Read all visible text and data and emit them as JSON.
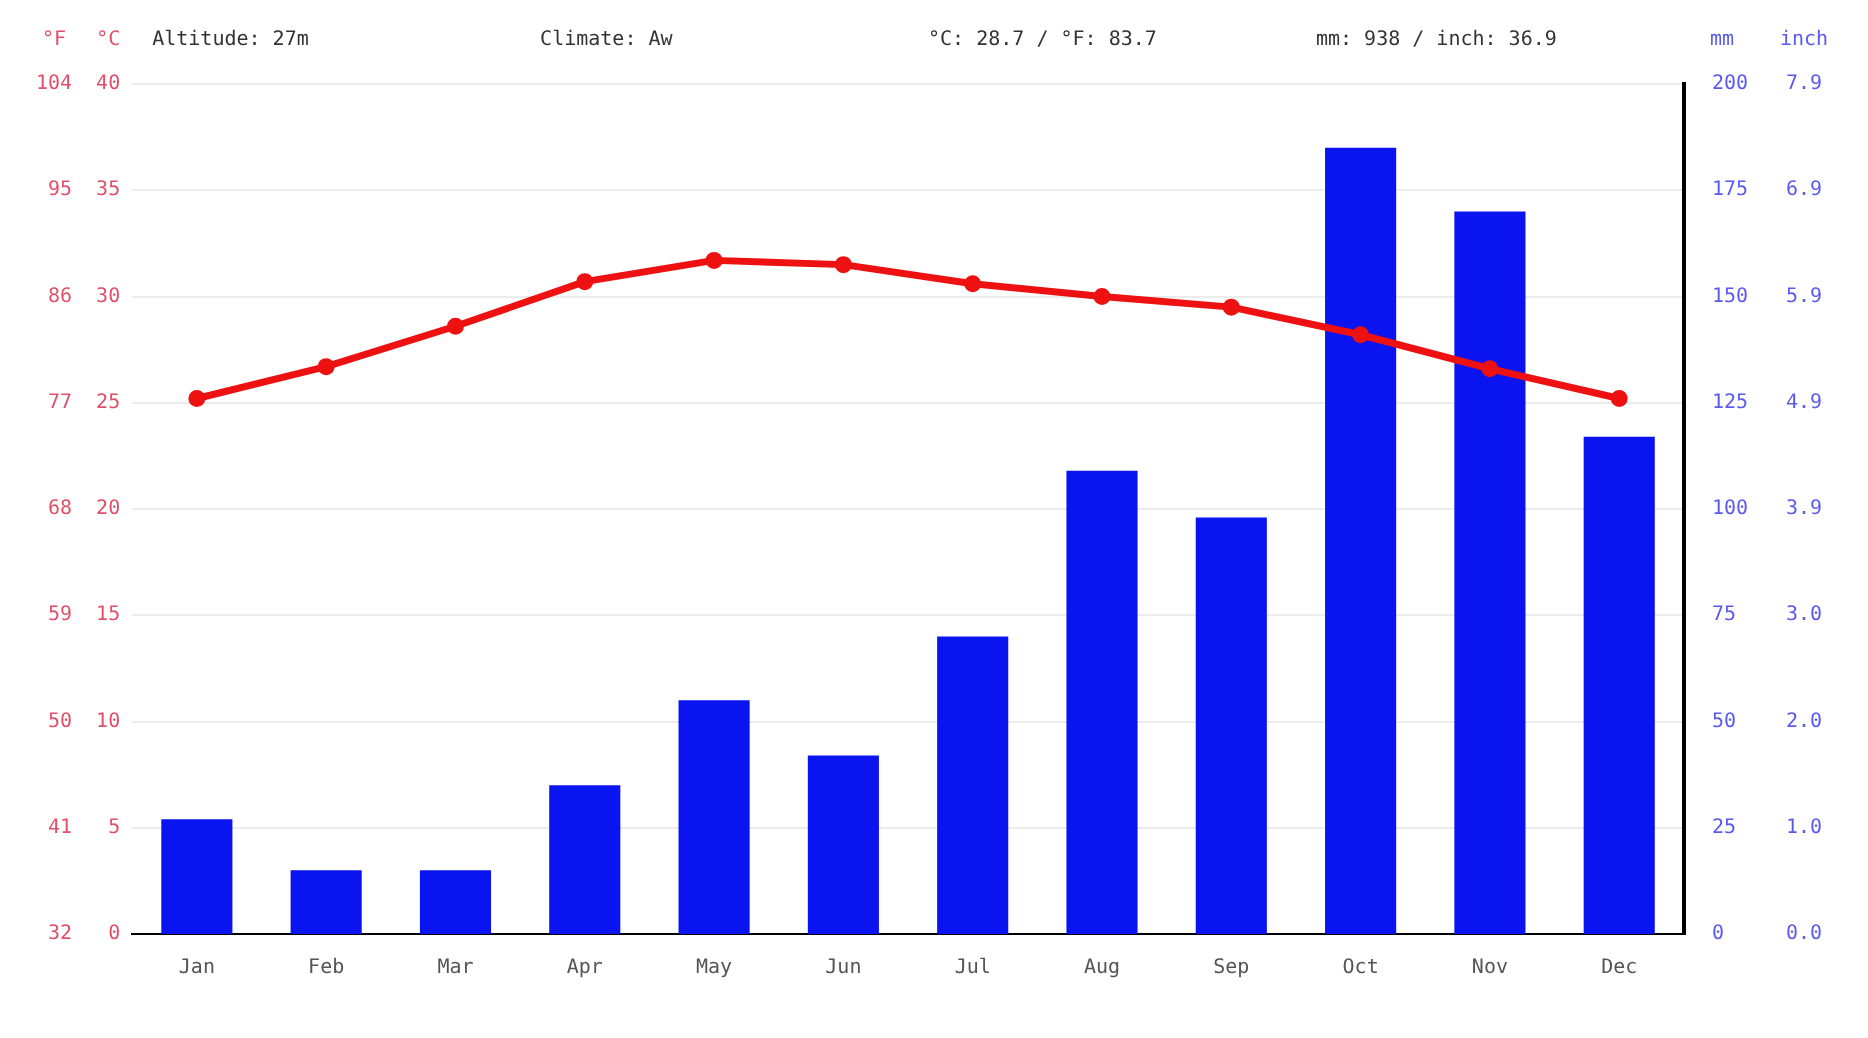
{
  "chart_data": {
    "type": "bar",
    "categories": [
      "Jan",
      "Feb",
      "Mar",
      "Apr",
      "May",
      "Jun",
      "Jul",
      "Aug",
      "Sep",
      "Oct",
      "Nov",
      "Dec"
    ],
    "series": [
      {
        "axis": "y2",
        "color": "#0a14f0",
        "values": [
          27,
          15,
          15,
          35,
          55,
          42,
          70,
          109,
          98,
          185,
          170,
          117
        ]
      },
      {
        "type": "line",
        "axis": "y",
        "color": "#ee1111",
        "marker": "circle",
        "values": [
          25.2,
          26.7,
          28.6,
          30.7,
          31.7,
          31.5,
          30.6,
          30.0,
          29.5,
          28.2,
          26.6,
          25.2
        ]
      }
    ],
    "ylabel": "°C",
    "ylim": [
      0,
      40
    ],
    "yticks": [
      0,
      5,
      10,
      15,
      20,
      25,
      30,
      35,
      40
    ],
    "y2label": "mm",
    "y2lim": [
      0,
      200
    ],
    "y2ticks": [
      0,
      25,
      50,
      75,
      100,
      125,
      150,
      175,
      200
    ],
    "y3label": "°F",
    "y3lim": [
      32,
      104
    ],
    "y3ticks": [
      32,
      41,
      50,
      59,
      68,
      77,
      86,
      95,
      104
    ],
    "grid": "y",
    "annotations": [
      "Altitude: 27m",
      "Climate: Aw",
      "°C: 28.7 / °F: 83.7",
      "mm: 938 / inch: 36.9",
      "inch",
      "0.0",
      "1.0",
      "2.0",
      "3.0",
      "3.9",
      "4.9",
      "5.9",
      "6.9",
      "7.9"
    ]
  }
}
